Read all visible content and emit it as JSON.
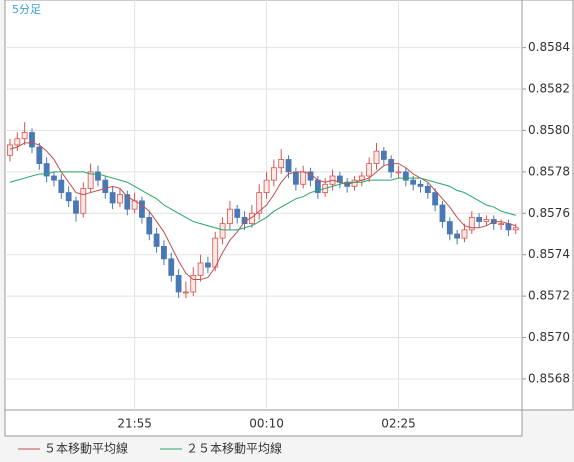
{
  "chart_data": {
    "type": "candlestick",
    "title": "5分足",
    "categories": [
      null,
      null,
      null,
      null,
      null,
      null,
      null,
      null,
      null,
      null,
      null,
      null,
      null,
      null,
      null,
      null,
      null,
      "21:55",
      null,
      null,
      null,
      null,
      null,
      null,
      null,
      null,
      null,
      null,
      null,
      null,
      null,
      null,
      null,
      null,
      null,
      "00:10",
      null,
      null,
      null,
      null,
      null,
      null,
      null,
      null,
      null,
      null,
      null,
      null,
      null,
      null,
      null,
      null,
      null,
      "02:25",
      null,
      null,
      null,
      null,
      null,
      null,
      null,
      null,
      null,
      null,
      null,
      null,
      null,
      null,
      null,
      null
    ],
    "open": [
      0.85788,
      0.85793,
      0.85796,
      0.85799,
      0.85792,
      0.85784,
      0.85778,
      0.85776,
      0.8577,
      0.85766,
      0.8576,
      0.85772,
      0.8578,
      0.85776,
      0.8577,
      0.85765,
      0.85769,
      0.85762,
      0.85766,
      0.85758,
      0.8575,
      0.85744,
      0.85738,
      0.8573,
      0.85722,
      0.85722,
      0.8573,
      0.85736,
      0.85734,
      0.85748,
      0.85755,
      0.85762,
      0.85758,
      0.85755,
      0.8576,
      0.8577,
      0.85776,
      0.85782,
      0.85786,
      0.8578,
      0.85774,
      0.8578,
      0.85776,
      0.8577,
      0.85774,
      0.85778,
      0.85775,
      0.85773,
      0.85776,
      0.85778,
      0.85784,
      0.8579,
      0.85786,
      0.8578,
      0.8578,
      0.85776,
      0.85774,
      0.85773,
      0.8577,
      0.85764,
      0.85756,
      0.8575,
      0.85748,
      0.85752,
      0.85758,
      0.85756,
      0.85757,
      0.85755,
      0.85755,
      0.85752
    ],
    "high": [
      0.85796,
      0.85799,
      0.85804,
      0.85801,
      0.85794,
      0.85787,
      0.8578,
      0.85779,
      0.85773,
      0.85768,
      0.85775,
      0.85784,
      0.85783,
      0.85778,
      0.85773,
      0.85772,
      0.85771,
      0.8577,
      0.85768,
      0.85761,
      0.85753,
      0.85747,
      0.85741,
      0.85733,
      0.85727,
      0.85734,
      0.8574,
      0.85739,
      0.85751,
      0.85758,
      0.85766,
      0.85764,
      0.85761,
      0.85764,
      0.85774,
      0.8578,
      0.85786,
      0.85791,
      0.85788,
      0.85782,
      0.85783,
      0.85782,
      0.85778,
      0.85777,
      0.85781,
      0.8578,
      0.85777,
      0.85778,
      0.8578,
      0.85787,
      0.85794,
      0.85792,
      0.85788,
      0.85783,
      0.85782,
      0.85778,
      0.85776,
      0.85775,
      0.85772,
      0.85766,
      0.85758,
      0.85752,
      0.85755,
      0.85761,
      0.8576,
      0.85759,
      0.85759,
      0.85757,
      0.85757,
      0.85755
    ],
    "low": [
      0.85785,
      0.8579,
      0.85793,
      0.85789,
      0.85781,
      0.85775,
      0.85773,
      0.85767,
      0.85763,
      0.85756,
      0.85758,
      0.8577,
      0.85773,
      0.85767,
      0.85762,
      0.85763,
      0.85759,
      0.8576,
      0.85755,
      0.85747,
      0.85741,
      0.85735,
      0.85727,
      0.85719,
      0.85719,
      0.8572,
      0.85727,
      0.85731,
      0.85732,
      0.85745,
      0.85752,
      0.85755,
      0.85752,
      0.85753,
      0.85757,
      0.85767,
      0.85773,
      0.85779,
      0.85777,
      0.85771,
      0.85772,
      0.85773,
      0.85767,
      0.85768,
      0.85771,
      0.85772,
      0.8577,
      0.85771,
      0.85773,
      0.85775,
      0.85781,
      0.85783,
      0.85777,
      0.85777,
      0.85773,
      0.85771,
      0.8577,
      0.85767,
      0.85761,
      0.85753,
      0.85747,
      0.85745,
      0.85746,
      0.8575,
      0.85753,
      0.85754,
      0.85752,
      0.85752,
      0.85749,
      0.8575
    ],
    "close": [
      0.85793,
      0.85796,
      0.85799,
      0.85792,
      0.85784,
      0.85778,
      0.85776,
      0.8577,
      0.85766,
      0.8576,
      0.85772,
      0.8578,
      0.85776,
      0.8577,
      0.85765,
      0.85769,
      0.85762,
      0.85766,
      0.85758,
      0.8575,
      0.85744,
      0.85738,
      0.8573,
      0.85722,
      0.85722,
      0.8573,
      0.85736,
      0.85734,
      0.85748,
      0.85755,
      0.85762,
      0.85758,
      0.85755,
      0.8576,
      0.8577,
      0.85776,
      0.85782,
      0.85786,
      0.8578,
      0.85774,
      0.8578,
      0.85776,
      0.8577,
      0.85774,
      0.85778,
      0.85775,
      0.85773,
      0.85776,
      0.85778,
      0.85784,
      0.8579,
      0.85786,
      0.8578,
      0.8578,
      0.85776,
      0.85774,
      0.85773,
      0.8577,
      0.85764,
      0.85756,
      0.8575,
      0.85748,
      0.85752,
      0.85758,
      0.85756,
      0.85757,
      0.85755,
      0.85755,
      0.85752,
      0.85753
    ],
    "up_color": "#d9534f",
    "down_color": "#4a78b5",
    "series": [
      {
        "name": "５本移動平均線",
        "color": "#c0504d",
        "values": [
          0.85791,
          0.85792,
          0.85794,
          0.85794,
          0.85793,
          0.8579,
          0.85786,
          0.8578,
          0.85775,
          0.8577,
          0.85769,
          0.8577,
          0.85771,
          0.85772,
          0.85773,
          0.85772,
          0.85768,
          0.85766,
          0.85764,
          0.85761,
          0.85756,
          0.85751,
          0.85744,
          0.85737,
          0.85731,
          0.85728,
          0.85728,
          0.85729,
          0.85734,
          0.85741,
          0.85747,
          0.85751,
          0.85756,
          0.85758,
          0.85761,
          0.85764,
          0.85769,
          0.85775,
          0.85779,
          0.8578,
          0.8578,
          0.85779,
          0.85776,
          0.85775,
          0.85776,
          0.85775,
          0.85774,
          0.85775,
          0.85776,
          0.85777,
          0.8578,
          0.85783,
          0.85784,
          0.85784,
          0.85782,
          0.85779,
          0.85777,
          0.85775,
          0.85771,
          0.85767,
          0.85763,
          0.85758,
          0.85754,
          0.85753,
          0.85753,
          0.85754,
          0.85756,
          0.85756,
          0.85755,
          0.85754
        ]
      },
      {
        "name": "２５本移動平均線",
        "color": "#2aa56b",
        "values": [
          0.85775,
          0.85776,
          0.85777,
          0.85778,
          0.85779,
          0.85779,
          0.8578,
          0.8578,
          0.8578,
          0.8578,
          0.8578,
          0.85779,
          0.85779,
          0.85778,
          0.85777,
          0.85776,
          0.85775,
          0.85773,
          0.85771,
          0.85769,
          0.85767,
          0.85764,
          0.85762,
          0.8576,
          0.85758,
          0.85756,
          0.85755,
          0.85754,
          0.85753,
          0.85752,
          0.85752,
          0.85752,
          0.85753,
          0.85754,
          0.85756,
          0.85758,
          0.85761,
          0.85763,
          0.85765,
          0.85767,
          0.85768,
          0.8577,
          0.85771,
          0.85772,
          0.85773,
          0.85774,
          0.85775,
          0.85775,
          0.85775,
          0.85776,
          0.85776,
          0.85776,
          0.85776,
          0.85777,
          0.85777,
          0.85777,
          0.85777,
          0.85776,
          0.85775,
          0.85774,
          0.85773,
          0.85771,
          0.8577,
          0.85768,
          0.85766,
          0.85764,
          0.85763,
          0.85761,
          0.8576,
          0.85759
        ]
      }
    ],
    "ylim": [
      0.85665,
      0.85863
    ],
    "yticks": [
      0.8568,
      {
        "value": 0.857,
        "label": "0.8570"
      },
      0.8572,
      0.8574,
      0.8576,
      0.8578,
      {
        "value": 0.858,
        "label": "0.8580"
      },
      0.8582,
      0.8584
    ],
    "grid": true
  }
}
